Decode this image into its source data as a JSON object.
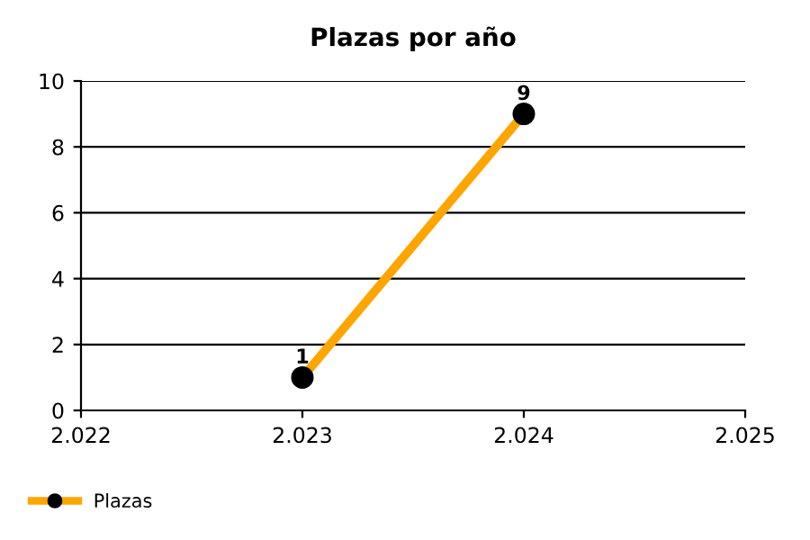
{
  "chart_data": {
    "type": "line",
    "title": "Plazas por año",
    "x": [
      2023,
      2024
    ],
    "series": [
      {
        "name": "Plazas",
        "color": "#ffa500",
        "values": [
          1,
          9
        ]
      }
    ],
    "xlim": [
      2022,
      2025
    ],
    "xticks": [
      {
        "value": 2022,
        "label": "2.022"
      },
      {
        "value": 2023,
        "label": "2.023"
      },
      {
        "value": 2024,
        "label": "2.024"
      },
      {
        "value": 2025,
        "label": "2.025"
      }
    ],
    "ylim": [
      0,
      10
    ],
    "yticks": [
      0,
      2,
      4,
      6,
      8,
      10
    ],
    "grid": "y",
    "legend": "bottom left",
    "marker": "circle",
    "data_labels": true
  }
}
